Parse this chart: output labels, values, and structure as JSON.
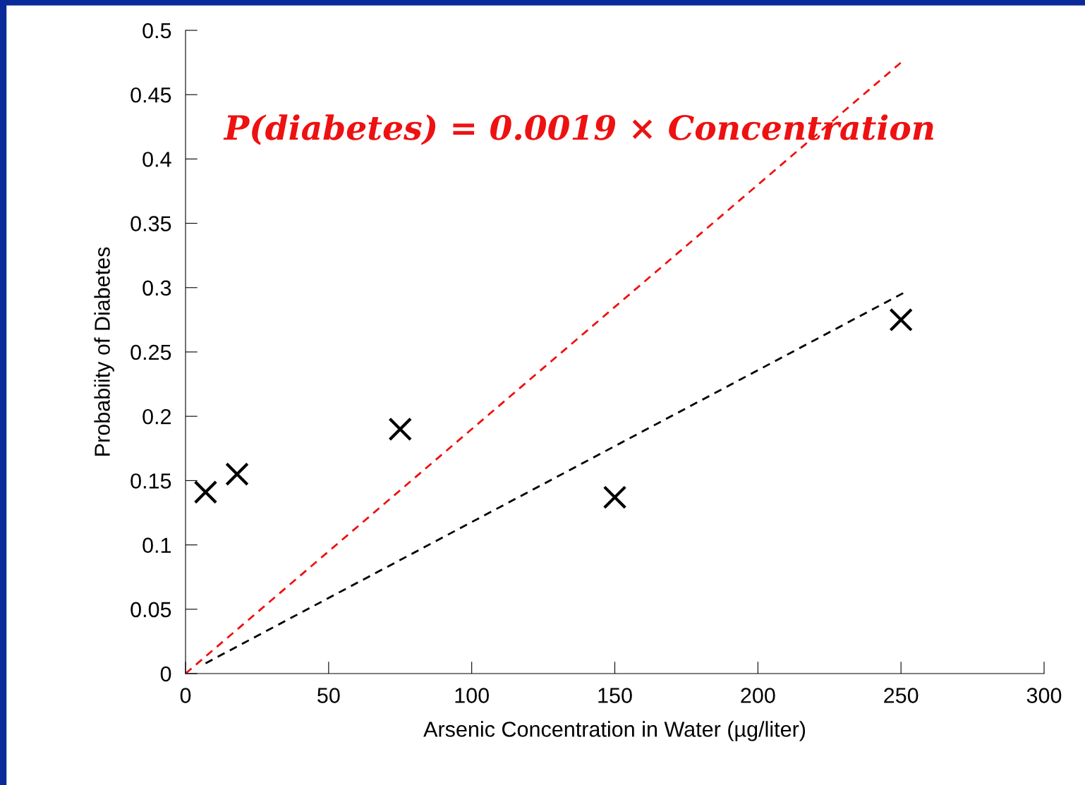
{
  "chart_data": {
    "type": "scatter",
    "xlabel": "Arsenic Concentration in Water (µg/liter)",
    "ylabel": "Probabiity of Diabetes",
    "series": [
      {
        "color": "#000000",
        "marker": "cross",
        "x": [
          7,
          18,
          75,
          150,
          250
        ],
        "values": [
          0.141,
          0.155,
          0.19,
          0.137,
          0.275
        ]
      },
      {
        "type": "line",
        "color": "#000000",
        "line_style": "dashed",
        "marker": "none",
        "x": [
          7,
          251
        ],
        "values": [
          0.008,
          0.296
        ]
      },
      {
        "type": "line",
        "color": "#ee1111",
        "line_style": "dashed",
        "marker": "none",
        "x": [
          0,
          250
        ],
        "values": [
          0,
          0.475
        ]
      }
    ],
    "annotations": [
      "P(diabetes) = 0.0019 × Concentration"
    ],
    "xlim": [
      0,
      300
    ],
    "xticks": [
      0,
      50,
      100,
      150,
      200,
      250,
      300
    ],
    "ylim": [
      0,
      0.5
    ],
    "yticks": [
      0,
      0.05,
      0.1,
      0.15,
      0.2,
      0.25,
      0.3,
      0.35,
      0.4,
      0.45,
      0.5
    ],
    "grid": false,
    "legend": false
  }
}
